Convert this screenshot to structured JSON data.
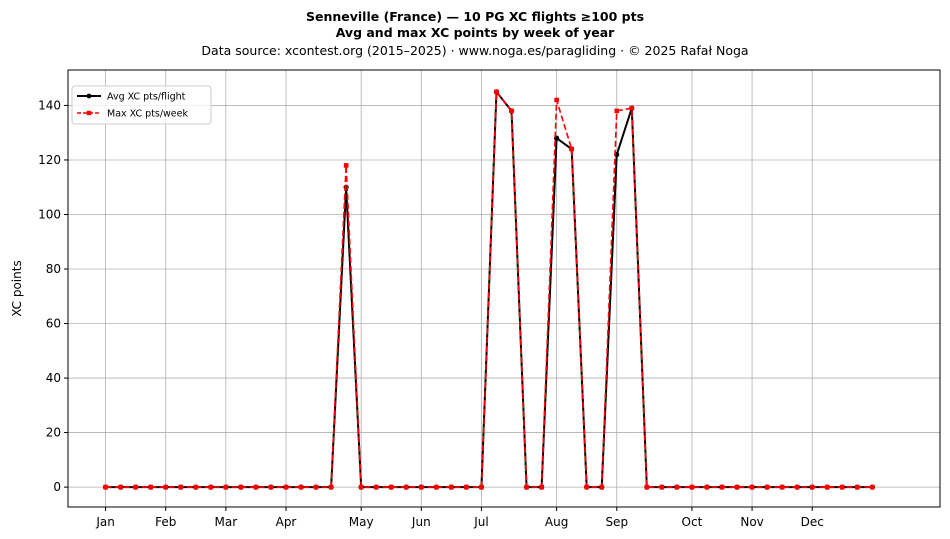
{
  "chart_data": {
    "type": "line",
    "title": "Senneville (France)  —  10 PG XC flights ≥100 pts",
    "subtitle": "Avg and max XC points by week of year",
    "source": "Data source: xcontest.org (2015–2025)  ·  www.noga.es/paragliding  ·  © 2025 Rafał Noga",
    "xlabel": "",
    "ylabel": "XC points",
    "xlim": [
      -2.5,
      55.5
    ],
    "ylim": [
      -7.3,
      153
    ],
    "y_ticks": [
      0,
      20,
      40,
      60,
      80,
      100,
      120,
      140
    ],
    "x_ticks": [
      {
        "pos": 0,
        "label": "Jan"
      },
      {
        "pos": 4,
        "label": "Feb"
      },
      {
        "pos": 8,
        "label": "Mar"
      },
      {
        "pos": 12,
        "label": "Apr"
      },
      {
        "pos": 17,
        "label": "May"
      },
      {
        "pos": 21,
        "label": "Jun"
      },
      {
        "pos": 25,
        "label": "Jul"
      },
      {
        "pos": 30,
        "label": "Aug"
      },
      {
        "pos": 34,
        "label": "Sep"
      },
      {
        "pos": 39,
        "label": "Oct"
      },
      {
        "pos": 43,
        "label": "Nov"
      },
      {
        "pos": 47,
        "label": "Dec"
      }
    ],
    "grid": true,
    "legend": "upper-left",
    "x": [
      0,
      1,
      2,
      3,
      4,
      5,
      6,
      7,
      8,
      9,
      10,
      11,
      12,
      13,
      14,
      15,
      16,
      17,
      18,
      19,
      20,
      21,
      22,
      23,
      24,
      25,
      26,
      27,
      28,
      29,
      30,
      31,
      32,
      33,
      34,
      35,
      36,
      37,
      38,
      39,
      40,
      41,
      42,
      43,
      44,
      45,
      46,
      47,
      48,
      49,
      50,
      51
    ],
    "series": [
      {
        "name": "Avg XC pts/flight",
        "color": "#000000",
        "style": "solid",
        "marker": "circle",
        "values": [
          0,
          0,
          0,
          0,
          0,
          0,
          0,
          0,
          0,
          0,
          0,
          0,
          0,
          0,
          0,
          0,
          110,
          0,
          0,
          0,
          0,
          0,
          0,
          0,
          0,
          0,
          145,
          138,
          0,
          0,
          128,
          124,
          0,
          0,
          122,
          139,
          0,
          0,
          0,
          0,
          0,
          0,
          0,
          0,
          0,
          0,
          0,
          0,
          0,
          0,
          0,
          0
        ]
      },
      {
        "name": "Max XC pts/week",
        "color": "#ff0000",
        "style": "dashed",
        "marker": "square",
        "values": [
          0,
          0,
          0,
          0,
          0,
          0,
          0,
          0,
          0,
          0,
          0,
          0,
          0,
          0,
          0,
          0,
          118,
          0,
          0,
          0,
          0,
          0,
          0,
          0,
          0,
          0,
          145,
          138,
          0,
          0,
          142,
          124,
          0,
          0,
          138,
          139,
          0,
          0,
          0,
          0,
          0,
          0,
          0,
          0,
          0,
          0,
          0,
          0,
          0,
          0,
          0,
          0
        ]
      }
    ]
  }
}
